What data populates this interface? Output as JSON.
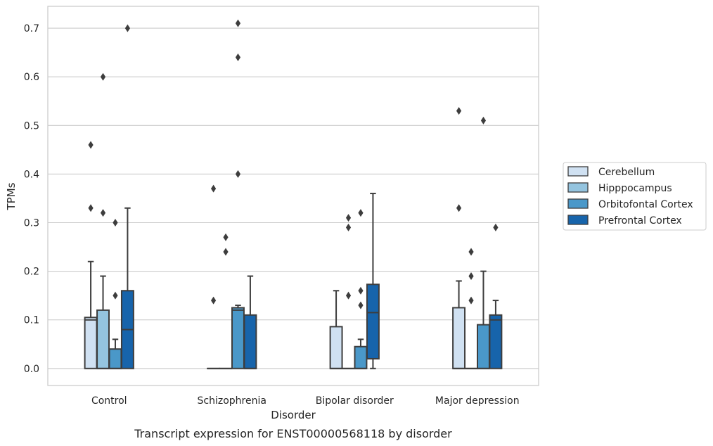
{
  "chart_data": {
    "type": "box",
    "xlabel": "Disorder",
    "ylabel": "TPMs",
    "caption": "Transcript expression for ENST00000568118 by disorder",
    "ylim": [
      -0.035,
      0.745
    ],
    "yticks": [
      0.0,
      0.1,
      0.2,
      0.3,
      0.4,
      0.5,
      0.6,
      0.7
    ],
    "ytick_labels": [
      "0.0",
      "0.1",
      "0.2",
      "0.3",
      "0.4",
      "0.5",
      "0.6",
      "0.7"
    ],
    "grid": true,
    "legend_position": "right",
    "categories": [
      "Control",
      "Schizophrenia",
      "Bipolar disorder",
      "Major depression"
    ],
    "series": [
      {
        "name": "Cerebellum",
        "color": "#d0e1f2",
        "boxes": [
          {
            "whislo": 0.0,
            "q1": 0.0,
            "med": 0.1,
            "q3": 0.105,
            "whishi": 0.22,
            "fliers": [
              0.33,
              0.46
            ]
          },
          {
            "whislo": 0.0,
            "q1": 0.0,
            "med": 0.0,
            "q3": 0.0,
            "whishi": 0.0,
            "fliers": [
              0.14,
              0.37
            ]
          },
          {
            "whislo": 0.0,
            "q1": 0.0,
            "med": 0.0,
            "q3": 0.086,
            "whishi": 0.16,
            "fliers": []
          },
          {
            "whislo": 0.0,
            "q1": 0.0,
            "med": 0.0,
            "q3": 0.125,
            "whishi": 0.18,
            "fliers": [
              0.33,
              0.53
            ]
          }
        ]
      },
      {
        "name": "Hipppocampus",
        "color": "#94c4df",
        "boxes": [
          {
            "whislo": 0.0,
            "q1": 0.0,
            "med": 0.0,
            "q3": 0.12,
            "whishi": 0.19,
            "fliers": [
              0.32,
              0.6
            ]
          },
          {
            "whislo": 0.0,
            "q1": 0.0,
            "med": 0.0,
            "q3": 0.0,
            "whishi": 0.0,
            "fliers": [
              0.24,
              0.27
            ]
          },
          {
            "whislo": 0.0,
            "q1": 0.0,
            "med": 0.0,
            "q3": 0.0,
            "whishi": 0.0,
            "fliers": [
              0.15,
              0.29,
              0.31
            ]
          },
          {
            "whislo": 0.0,
            "q1": 0.0,
            "med": 0.0,
            "q3": 0.0,
            "whishi": 0.0,
            "fliers": [
              0.14,
              0.19,
              0.24
            ]
          }
        ]
      },
      {
        "name": "Orbitofontal Cortex",
        "color": "#4a98c9",
        "boxes": [
          {
            "whislo": 0.0,
            "q1": 0.0,
            "med": 0.0,
            "q3": 0.04,
            "whishi": 0.06,
            "fliers": [
              0.15,
              0.3
            ]
          },
          {
            "whislo": 0.0,
            "q1": 0.0,
            "med": 0.12,
            "q3": 0.125,
            "whishi": 0.13,
            "fliers": [
              0.4,
              0.64,
              0.71
            ]
          },
          {
            "whislo": 0.0,
            "q1": 0.0,
            "med": 0.0,
            "q3": 0.045,
            "whishi": 0.06,
            "fliers": [
              0.13,
              0.16,
              0.32
            ]
          },
          {
            "whislo": 0.0,
            "q1": 0.0,
            "med": 0.0,
            "q3": 0.09,
            "whishi": 0.2,
            "fliers": [
              0.51
            ]
          }
        ]
      },
      {
        "name": "Prefrontal Cortex",
        "color": "#1764ab",
        "boxes": [
          {
            "whislo": 0.0,
            "q1": 0.0,
            "med": 0.08,
            "q3": 0.16,
            "whishi": 0.33,
            "fliers": [
              0.7
            ]
          },
          {
            "whislo": 0.0,
            "q1": 0.0,
            "med": 0.0,
            "q3": 0.11,
            "whishi": 0.19,
            "fliers": []
          },
          {
            "whislo": 0.0,
            "q1": 0.02,
            "med": 0.115,
            "q3": 0.173,
            "whishi": 0.36,
            "fliers": []
          },
          {
            "whislo": 0.0,
            "q1": 0.0,
            "med": 0.1,
            "q3": 0.11,
            "whishi": 0.14,
            "fliers": [
              0.29
            ]
          }
        ]
      }
    ]
  }
}
